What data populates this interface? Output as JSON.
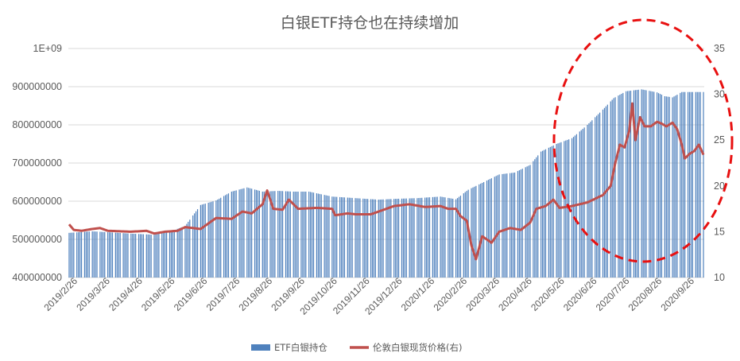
{
  "chart_data": {
    "type": "bar+line",
    "title": "白银ETF持仓也在持续增加",
    "legend_position": "bottom",
    "grid": true,
    "colors": {
      "bar": "#4f81bd",
      "line": "#c0504d",
      "highlight": "#e81010",
      "grid": "#d9d9d9"
    },
    "left_axis": {
      "min": 400000000,
      "max": 1000000000,
      "tick_labels": [
        "400000000",
        "500000000",
        "600000000",
        "700000000",
        "800000000",
        "900000000",
        "1E+09"
      ]
    },
    "right_axis": {
      "min": 10,
      "max": 35,
      "tick_labels": [
        "10",
        "15",
        "20",
        "25",
        "30",
        "35"
      ]
    },
    "x_tick_labels": [
      "2019/2/26",
      "2019/3/26",
      "2019/4/26",
      "2019/5/26",
      "2019/6/26",
      "2019/7/26",
      "2019/8/26",
      "2019/9/26",
      "2019/10/26",
      "2019/11/26",
      "2019/12/26",
      "2020/1/26",
      "2020/2/26",
      "2020/3/26",
      "2020/4/26",
      "2020/5/26",
      "2020/6/26",
      "2020/7/26",
      "2020/8/26",
      "2020/9/26"
    ],
    "series": [
      {
        "name": "ETF白银持仓",
        "type": "bar",
        "axis": "left",
        "keypoints": [
          [
            0,
            517000000
          ],
          [
            15,
            521000000
          ],
          [
            40,
            515000000
          ],
          [
            55,
            512000000
          ],
          [
            65,
            520000000
          ],
          [
            75,
            535000000
          ],
          [
            85,
            590000000
          ],
          [
            95,
            602000000
          ],
          [
            105,
            625000000
          ],
          [
            115,
            636000000
          ],
          [
            125,
            625000000
          ],
          [
            135,
            627000000
          ],
          [
            145,
            625000000
          ],
          [
            155,
            625000000
          ],
          [
            170,
            612000000
          ],
          [
            185,
            608000000
          ],
          [
            200,
            604000000
          ],
          [
            210,
            606000000
          ],
          [
            225,
            608000000
          ],
          [
            240,
            612000000
          ],
          [
            250,
            605000000
          ],
          [
            258,
            630000000
          ],
          [
            268,
            650000000
          ],
          [
            278,
            670000000
          ],
          [
            288,
            675000000
          ],
          [
            298,
            695000000
          ],
          [
            305,
            730000000
          ],
          [
            315,
            750000000
          ],
          [
            325,
            765000000
          ],
          [
            335,
            800000000
          ],
          [
            345,
            840000000
          ],
          [
            352,
            870000000
          ],
          [
            360,
            888000000
          ],
          [
            370,
            893000000
          ],
          [
            380,
            885000000
          ],
          [
            385,
            875000000
          ],
          [
            390,
            872000000
          ],
          [
            396,
            886000000
          ]
        ]
      },
      {
        "name": "伦敦白银现货价格(右)",
        "type": "line",
        "axis": "right",
        "keypoints": [
          [
            0,
            15.8
          ],
          [
            3,
            15.2
          ],
          [
            8,
            15.1
          ],
          [
            15,
            15.3
          ],
          [
            20,
            15.4
          ],
          [
            25,
            15.1
          ],
          [
            40,
            15.0
          ],
          [
            50,
            15.1
          ],
          [
            55,
            14.8
          ],
          [
            62,
            15.0
          ],
          [
            70,
            15.1
          ],
          [
            75,
            15.5
          ],
          [
            85,
            15.3
          ],
          [
            95,
            16.5
          ],
          [
            105,
            16.4
          ],
          [
            112,
            17.2
          ],
          [
            118,
            17.0
          ],
          [
            125,
            18.0
          ],
          [
            128,
            19.5
          ],
          [
            132,
            17.5
          ],
          [
            138,
            17.4
          ],
          [
            142,
            18.5
          ],
          [
            148,
            17.5
          ],
          [
            160,
            17.6
          ],
          [
            170,
            17.5
          ],
          [
            172,
            16.8
          ],
          [
            180,
            17.0
          ],
          [
            185,
            16.9
          ],
          [
            195,
            16.9
          ],
          [
            200,
            17.2
          ],
          [
            210,
            17.8
          ],
          [
            220,
            18.0
          ],
          [
            230,
            17.7
          ],
          [
            240,
            17.8
          ],
          [
            245,
            17.5
          ],
          [
            250,
            17.5
          ],
          [
            253,
            16.7
          ],
          [
            257,
            16.2
          ],
          [
            260,
            13.5
          ],
          [
            263,
            12.0
          ],
          [
            267,
            14.5
          ],
          [
            273,
            13.8
          ],
          [
            278,
            15.0
          ],
          [
            285,
            15.4
          ],
          [
            292,
            15.2
          ],
          [
            298,
            16.0
          ],
          [
            302,
            17.5
          ],
          [
            308,
            17.8
          ],
          [
            313,
            18.5
          ],
          [
            317,
            17.6
          ],
          [
            325,
            17.8
          ],
          [
            335,
            18.2
          ],
          [
            345,
            19.0
          ],
          [
            350,
            20.0
          ],
          [
            353,
            22.5
          ],
          [
            356,
            24.5
          ],
          [
            359,
            24.2
          ],
          [
            362,
            26.0
          ],
          [
            364,
            29.0
          ],
          [
            366,
            25.0
          ],
          [
            369,
            27.5
          ],
          [
            372,
            26.5
          ],
          [
            376,
            26.5
          ],
          [
            380,
            27.0
          ],
          [
            383,
            26.8
          ],
          [
            386,
            26.5
          ],
          [
            390,
            26.9
          ],
          [
            393,
            26.2
          ],
          [
            396,
            24.5
          ],
          [
            398,
            23.0
          ],
          [
            401,
            23.5
          ],
          [
            404,
            23.8
          ],
          [
            407,
            24.5
          ],
          [
            410,
            23.4
          ]
        ]
      }
    ]
  }
}
